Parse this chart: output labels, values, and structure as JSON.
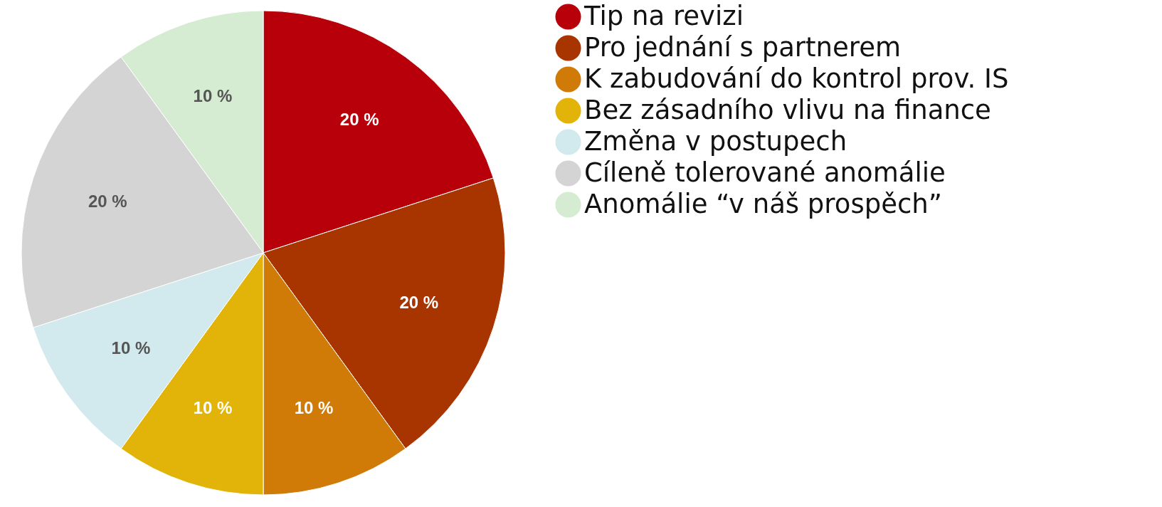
{
  "chart_data": {
    "type": "pie",
    "categories": [
      "Tip na revizi",
      "Pro jednání s partnerem",
      "K zabudování do kontrol prov. IS",
      "Bez zásadního vlivu na finance",
      "Změna v postupech",
      "Cíleně tolerované anomálie",
      "Anomálie “v náš prospěch”"
    ],
    "values": [
      20,
      20,
      10,
      10,
      10,
      20,
      10
    ],
    "colors": [
      "#b8000a",
      "#a83400",
      "#d07a08",
      "#e2b40a",
      "#d2e9ee",
      "#d4d4d4",
      "#d6ecd2"
    ],
    "value_labels": [
      "20 %",
      "20 %",
      "10 %",
      "10 %",
      "10 %",
      "20 %",
      "10 %"
    ],
    "legend": "right"
  }
}
